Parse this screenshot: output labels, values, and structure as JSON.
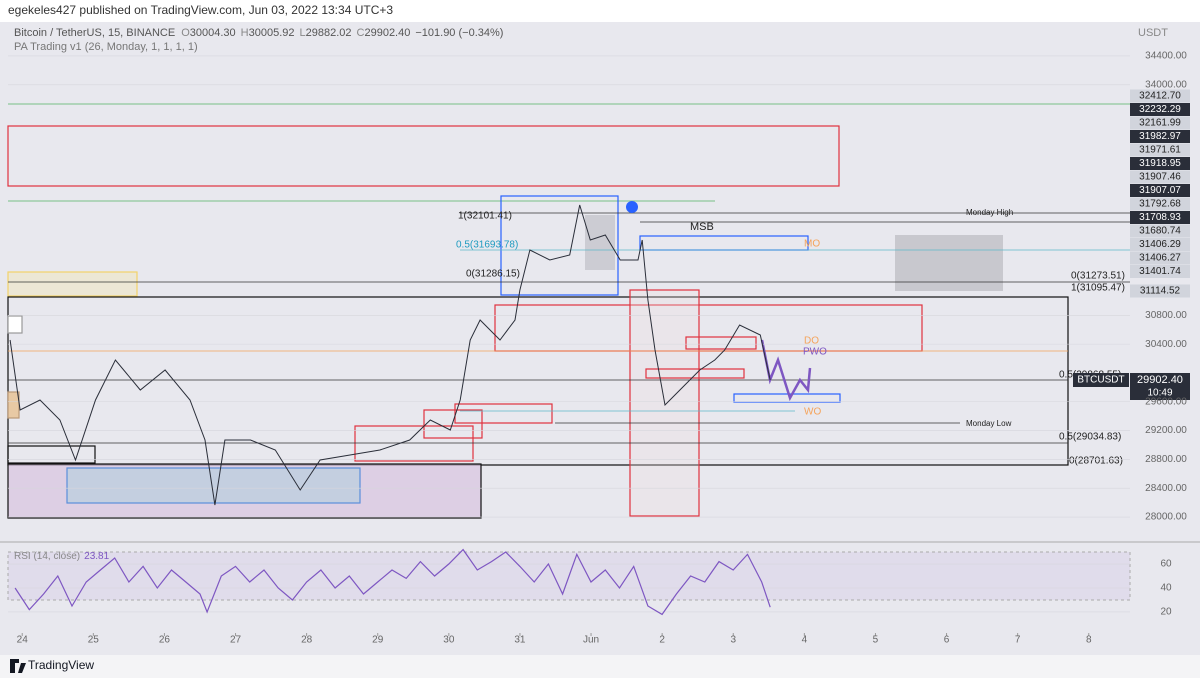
{
  "header": {
    "publisher": "egekeles427 published on TradingView.com, Jun 03, 2022 13:34 UTC+3",
    "footer": "TradingView"
  },
  "chart_data": [
    {
      "type": "line",
      "symbol": "Bitcoin / TetherUS, 15, BINANCE",
      "ohlc": [
        {
          "label": "O",
          "value": "30004.30"
        },
        {
          "label": "H",
          "value": "30005.92"
        },
        {
          "label": "L",
          "value": "29882.02"
        },
        {
          "label": "C",
          "value": "29902.40"
        }
      ],
      "change": "−101.90 (−0.34%)",
      "indicator": "PA Trading v1 (26, Monday, 1, 1, 1, 1)",
      "currency": "USDT",
      "ticker": "BTCUSDT",
      "last_price": "29902.40",
      "countdown": "10:49",
      "color": "#2a2e39",
      "x": [
        -0.17,
        -0.03,
        0.25,
        0.53,
        0.75,
        1.03,
        1.31,
        1.66,
        2.01,
        2.36,
        2.57,
        2.71,
        2.85,
        3.21,
        3.56,
        3.91,
        4.19,
        4.61,
        5.03,
        5.45,
        5.74,
        6.02,
        6.16,
        6.3,
        6.44,
        6.72,
        6.93,
        7.0,
        7.14,
        7.42,
        7.7,
        7.84,
        7.99,
        8.2,
        8.41,
        8.66,
        8.72,
        8.8,
        8.9,
        9.04,
        9.25,
        9.53,
        9.74,
        9.88,
        10.09,
        10.38,
        10.52
      ],
      "values": [
        30457,
        29486,
        29624,
        29347,
        28791,
        29624,
        30180,
        29763,
        30041,
        29624,
        29069,
        28167,
        29069,
        29069,
        28930,
        28375,
        28791,
        28861,
        28930,
        29069,
        29347,
        29208,
        29624,
        30457,
        30735,
        30457,
        30735,
        31151,
        31707,
        31568,
        31637,
        32332,
        31846,
        31915,
        31568,
        31568,
        31846,
        31013,
        30319,
        29555,
        29763,
        30041,
        30180,
        30319,
        30666,
        30527,
        29902
      ],
      "xlim": [
        -0.2,
        15.58
      ],
      "xticks": [
        {
          "value": 0,
          "label": "24"
        },
        {
          "value": 1,
          "label": "25"
        },
        {
          "value": 2,
          "label": "26"
        },
        {
          "value": 3,
          "label": "27"
        },
        {
          "value": 4,
          "label": "28"
        },
        {
          "value": 5,
          "label": "29"
        },
        {
          "value": 6,
          "label": "30"
        },
        {
          "value": 7,
          "label": "31"
        },
        {
          "value": 8,
          "label": "Jun"
        },
        {
          "value": 9,
          "label": "2"
        },
        {
          "value": 10,
          "label": "3"
        },
        {
          "value": 11,
          "label": "4"
        },
        {
          "value": 12,
          "label": "5"
        },
        {
          "value": 13,
          "label": "6"
        },
        {
          "value": 14,
          "label": "7"
        },
        {
          "value": 15,
          "label": "8"
        }
      ],
      "ylim": [
        27681,
        34844
      ],
      "yticks": [
        {
          "value": 28000,
          "label": "28000.00"
        },
        {
          "value": 28400,
          "label": "28400.00"
        },
        {
          "value": 28800,
          "label": "28800.00"
        },
        {
          "value": 29200,
          "label": "29200.00"
        },
        {
          "value": 29600,
          "label": "29600.00"
        },
        {
          "value": 30400,
          "label": "30400.00"
        },
        {
          "value": 30800,
          "label": "30800.00"
        },
        {
          "value": 34000,
          "label": "34000.00"
        },
        {
          "value": 34400,
          "label": "34400.00"
        }
      ],
      "price_labels": [
        "32412.70",
        "32232.29",
        "32161.99",
        "31982.97",
        "31971.61",
        "31918.95",
        "31907.46",
        "31907.07",
        "31792.68",
        "31708.93",
        "31680.74",
        "31406.29",
        "31406.27",
        "31401.74",
        "31114.52"
      ],
      "annotations": [
        "1(32101.41)",
        "0.5(31693.78)",
        "0(31286.15)",
        "Monday High",
        "MSB",
        "MO",
        "0(31273.51)",
        "1(31095.47)",
        "DO",
        "PWO",
        "0.5(29868.55)",
        "WO",
        "Monday Low",
        "0.5(29034.83)",
        "0(28701.63)"
      ]
    },
    {
      "type": "line",
      "label": "RSI (14, close)",
      "last": "23.81",
      "color": "#7e57c2",
      "x": [
        -0.1,
        0.1,
        0.3,
        0.5,
        0.7,
        0.9,
        1.1,
        1.3,
        1.5,
        1.7,
        1.9,
        2.1,
        2.3,
        2.5,
        2.6,
        2.8,
        3.0,
        3.2,
        3.4,
        3.6,
        3.8,
        4.0,
        4.2,
        4.4,
        4.6,
        4.8,
        5.0,
        5.2,
        5.4,
        5.6,
        5.8,
        6.0,
        6.2,
        6.4,
        6.6,
        6.8,
        7.0,
        7.2,
        7.4,
        7.6,
        7.8,
        8.0,
        8.2,
        8.4,
        8.6,
        8.8,
        9.0,
        9.2,
        9.4,
        9.6,
        9.8,
        10.0,
        10.2,
        10.4,
        10.52
      ],
      "values": [
        40,
        22,
        35,
        50,
        25,
        45,
        55,
        65,
        45,
        58,
        40,
        55,
        45,
        35,
        20,
        50,
        58,
        45,
        55,
        40,
        30,
        45,
        55,
        40,
        50,
        35,
        45,
        55,
        48,
        62,
        50,
        60,
        72,
        55,
        62,
        70,
        58,
        45,
        60,
        35,
        68,
        45,
        55,
        40,
        58,
        25,
        18,
        35,
        50,
        45,
        62,
        55,
        68,
        45,
        24
      ],
      "xlim": [
        -0.2,
        15.58
      ],
      "ylim": [
        3.3,
        76.7
      ],
      "yticks": [
        20,
        40,
        60
      ]
    }
  ]
}
